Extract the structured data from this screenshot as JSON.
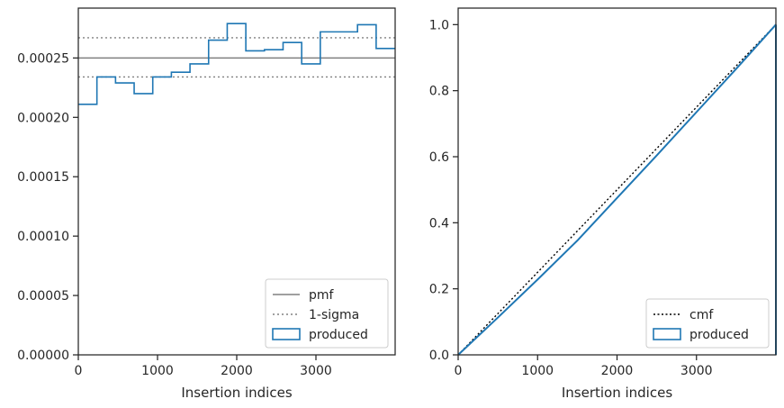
{
  "chart_data": [
    {
      "type": "histogram-step",
      "xlabel": "Insertion indices",
      "ylabel": "",
      "xlim": [
        0,
        4000
      ],
      "ylim": [
        0,
        0.000292
      ],
      "xticks": [
        0,
        1000,
        2000,
        3000
      ],
      "xtick_labels": [
        "0",
        "1000",
        "2000",
        "3000"
      ],
      "yticks": [
        0,
        5e-05,
        0.0001,
        0.00015,
        0.0002,
        0.00025
      ],
      "ytick_labels": [
        "0.00000",
        "0.00005",
        "0.00010",
        "0.00015",
        "0.00020",
        "0.00025"
      ],
      "bin_edges": [
        0,
        235,
        470,
        705,
        940,
        1175,
        1410,
        1645,
        1880,
        2115,
        2350,
        2585,
        2820,
        3055,
        3290,
        3525,
        3760,
        4000
      ],
      "series": [
        {
          "name": "produced",
          "color": "#1f77b4",
          "values": [
            0.000211,
            0.000234,
            0.000229,
            0.00022,
            0.000234,
            0.000238,
            0.000245,
            0.000265,
            0.000279,
            0.000256,
            0.000257,
            0.000263,
            0.000245,
            0.000272,
            0.000272,
            0.000278,
            0.000258
          ]
        }
      ],
      "reference_lines": [
        {
          "name": "pmf",
          "y": 0.00025,
          "style": "solid",
          "color": "#808080"
        },
        {
          "name": "1-sigma",
          "y": 0.000267,
          "style": "dotted",
          "color": "#808080"
        },
        {
          "name": "1-sigma",
          "y": 0.000234,
          "style": "dotted",
          "color": "#808080"
        }
      ],
      "legend": {
        "placement": "lower-right",
        "entries": [
          "pmf",
          "1-sigma",
          "produced"
        ]
      }
    },
    {
      "type": "cumulative-step",
      "xlabel": "Insertion indices",
      "ylabel": "",
      "xlim": [
        0,
        4000
      ],
      "ylim": [
        0,
        1.05
      ],
      "xticks": [
        0,
        1000,
        2000,
        3000
      ],
      "xtick_labels": [
        "0",
        "1000",
        "2000",
        "3000"
      ],
      "yticks": [
        0,
        0.2,
        0.4,
        0.6,
        0.8,
        1.0
      ],
      "ytick_labels": [
        "0.0",
        "0.2",
        "0.4",
        "0.6",
        "0.8",
        "1.0"
      ],
      "series": [
        {
          "name": "cmf",
          "style": "dotted",
          "color": "#000000",
          "x": [
            0,
            4000
          ],
          "y": [
            0,
            1.0
          ]
        },
        {
          "name": "produced",
          "style": "solid",
          "color": "#1f77b4",
          "x": [
            0,
            500,
            1000,
            1500,
            2000,
            2500,
            3000,
            3500,
            4000
          ],
          "y": [
            0,
            0.113,
            0.228,
            0.346,
            0.475,
            0.604,
            0.735,
            0.866,
            1.0
          ]
        }
      ],
      "legend": {
        "placement": "lower-right",
        "entries": [
          "cmf",
          "produced"
        ]
      }
    }
  ]
}
